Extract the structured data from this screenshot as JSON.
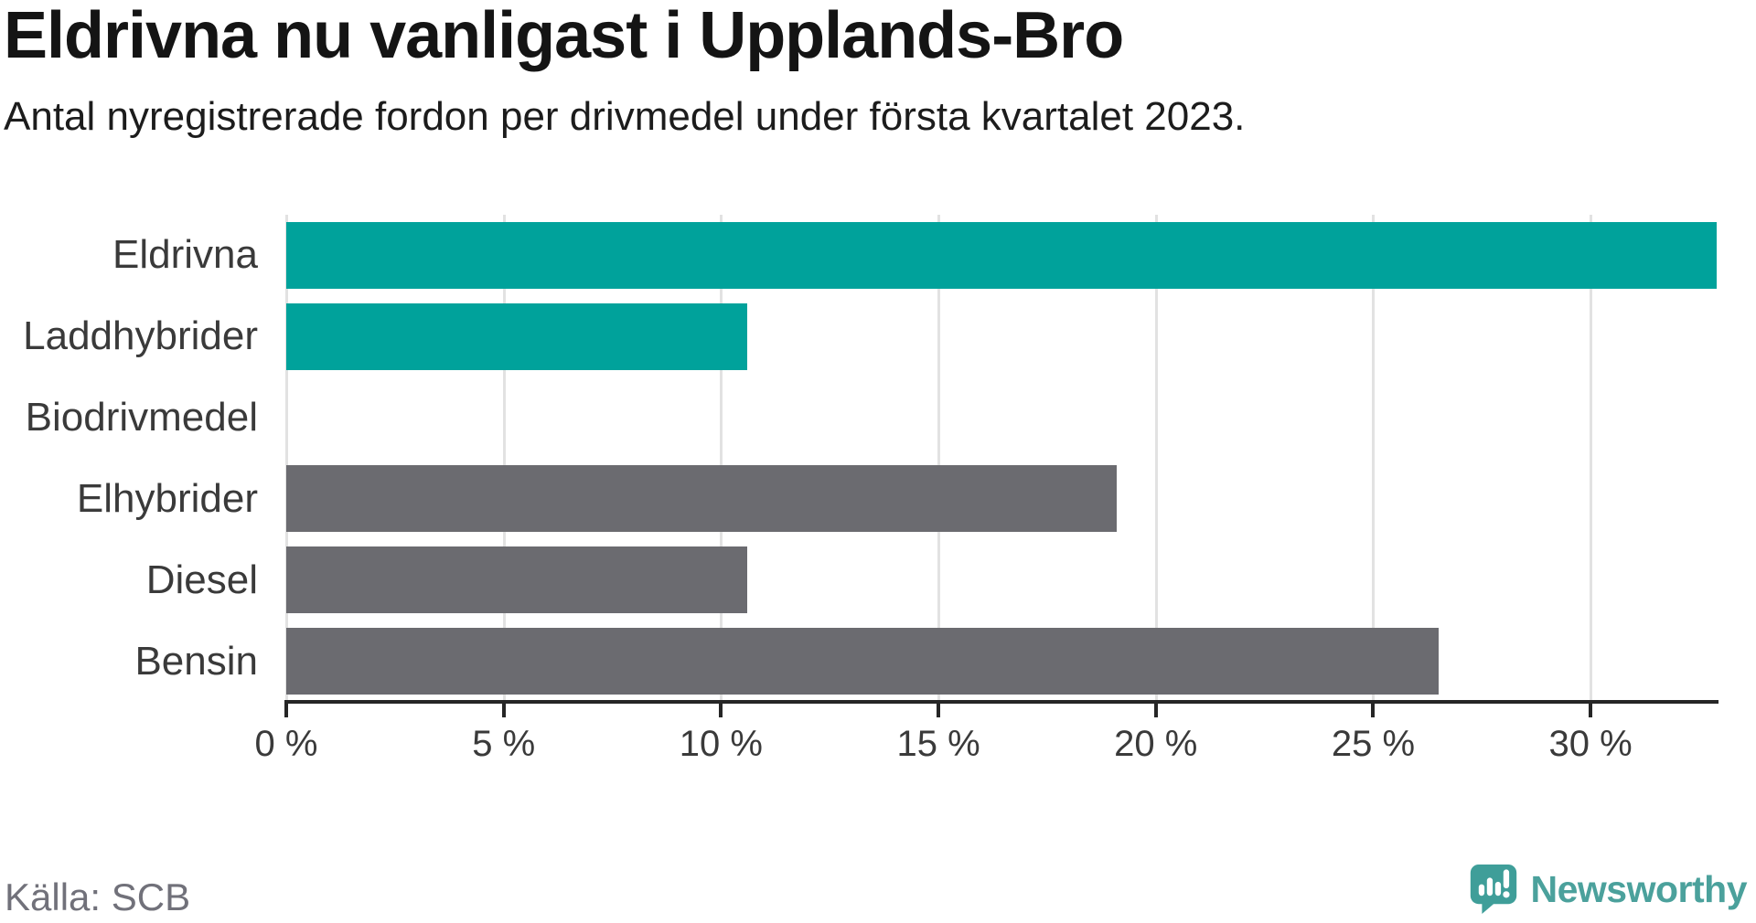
{
  "header": {
    "title": "Eldrivna nu vanligast i Upplands-Bro",
    "subtitle": "Antal nyregistrerade fordon per drivmedel under första kvartalet 2023."
  },
  "chart_data": {
    "type": "bar",
    "orientation": "horizontal",
    "title": "Eldrivna nu vanligast i Upplands-Bro",
    "subtitle": "Antal nyregistrerade fordon per drivmedel under första kvartalet 2023.",
    "categories": [
      "Eldrivna",
      "Laddhybrider",
      "Biodrivmedel",
      "Elhybrider",
      "Diesel",
      "Bensin"
    ],
    "values": [
      32.9,
      10.6,
      0,
      19.1,
      10.6,
      26.5
    ],
    "unit": "%",
    "bar_colors": [
      "#00a29b",
      "#00a29b",
      "#00a29b",
      "#6b6b70",
      "#6b6b70",
      "#6b6b70"
    ],
    "xlim": [
      0,
      32.9
    ],
    "ticks": [
      0,
      5,
      10,
      15,
      20,
      25,
      30
    ],
    "tick_labels": [
      "0 %",
      "5 %",
      "10 %",
      "15 %",
      "20 %",
      "25 %",
      "30 %"
    ],
    "grid": true,
    "legend": false
  },
  "footer": {
    "source": "Källa: SCB",
    "brand": "Newsworthy"
  },
  "colors": {
    "teal": "#00a29b",
    "gray": "#6b6b70",
    "grid": "#e2e2e2",
    "axis": "#262626",
    "label": "#3a3a3a",
    "source_text": "#71717a",
    "brand_teal": "#4ba19c",
    "logo_fill": "#3f9e99"
  }
}
